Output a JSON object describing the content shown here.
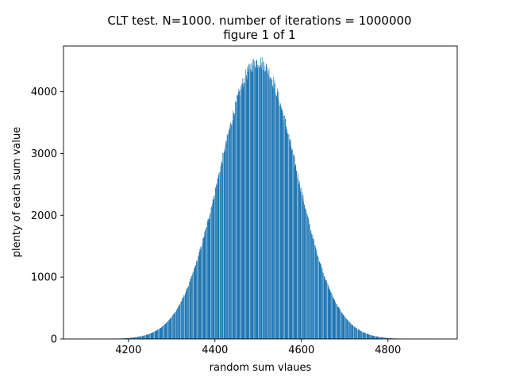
{
  "chart_data": {
    "type": "bar",
    "title": "CLT test. N=1000. number of iterations = 1000000",
    "subtitle": "figure 1 of 1",
    "xlabel": "random sum vlaues",
    "ylabel": "plenty of each sum value",
    "xlim": [
      4050,
      4960
    ],
    "ylim": [
      0,
      4740
    ],
    "xticks": [
      4200,
      4400,
      4600,
      4800
    ],
    "yticks": [
      0,
      1000,
      2000,
      3000,
      4000
    ],
    "bar_color": "#1f77b4",
    "gap_pattern": "every 10th value empty",
    "distribution": {
      "mean": 4500,
      "stdev": 89,
      "peak": 4488,
      "x_min": 4095,
      "x_max": 4935
    },
    "legend": "none",
    "grid": false
  }
}
